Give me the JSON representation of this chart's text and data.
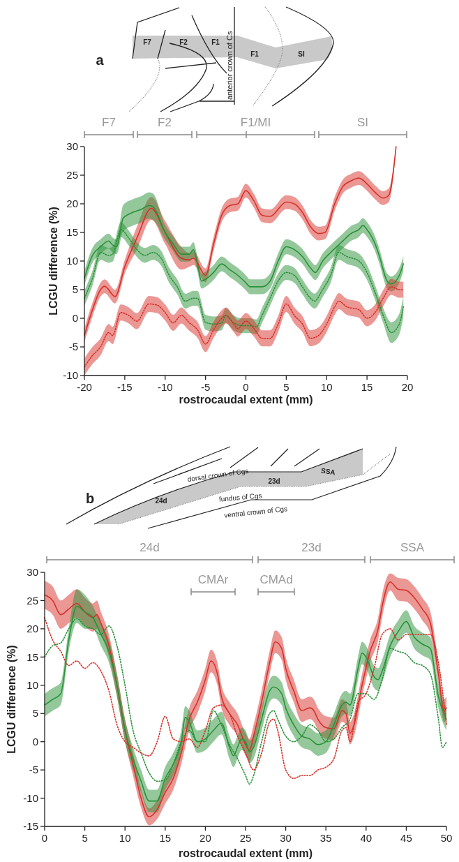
{
  "chart_data": [
    {
      "type": "line",
      "xlabel": "rostrocaudal extent (mm)",
      "ylabel": "LCGU difference (%)",
      "annotations": [
        "a",
        "F7",
        "F2",
        "F1",
        "anterior crown of Cs",
        "F1",
        "SI",
        "F7",
        "F2",
        "F1/MI",
        "SI"
      ],
      "xlim": [
        -20,
        20
      ],
      "xticks": [
        -20,
        -15,
        -10,
        -5,
        0,
        5,
        10,
        15,
        20
      ],
      "ylim": [
        -10,
        30
      ],
      "yticks": [
        -10,
        -5,
        0,
        5,
        10,
        15,
        20,
        25,
        30
      ],
      "series": [
        {
          "color": "#d7302a",
          "line_style": "solid",
          "x": [
            -20,
            -19,
            -18,
            -17.5,
            -16.2,
            -15,
            -13.5,
            -11.7,
            -10,
            -8,
            -7,
            -6.5,
            -5,
            -4,
            -3,
            -2,
            -1,
            0,
            1,
            2,
            3,
            5,
            6,
            7,
            8,
            9,
            9.8,
            11,
            12,
            13,
            14,
            15,
            16,
            17,
            17.7,
            18.6
          ],
          "values": [
            -3,
            1.5,
            5,
            5.6,
            3.8,
            9,
            14,
            19.2,
            15,
            10.5,
            10.2,
            10.5,
            7.5,
            13,
            18,
            19.7,
            20,
            22.3,
            20.5,
            18,
            17.8,
            20.3,
            20,
            18.5,
            16,
            14.8,
            15,
            20,
            23,
            24,
            24.5,
            23.5,
            22,
            21,
            21.5,
            30
          ],
          "lower": [
            -4.2,
            0.3,
            3.8,
            4.4,
            2.6,
            7.8,
            12,
            17.2,
            13,
            8.5,
            9,
            9.3,
            6.3,
            11.8,
            16.8,
            18.5,
            18.8,
            21.1,
            19.3,
            16.8,
            16.6,
            19.1,
            18.8,
            17.3,
            14.8,
            13.6,
            13.8,
            18.8,
            21.8,
            22.8,
            23.3,
            22.3,
            20.8,
            19.8,
            20.3,
            29.5
          ],
          "upper": [
            -1.8,
            2.7,
            6.2,
            6.8,
            5,
            10.2,
            16,
            21.2,
            17,
            12.5,
            11.4,
            11.7,
            8.7,
            14.2,
            19.2,
            20.9,
            21.2,
            23.5,
            21.7,
            19.2,
            19,
            21.5,
            21.2,
            19.7,
            17.2,
            16,
            16.2,
            21.2,
            24.2,
            25.2,
            25.7,
            24.7,
            23.2,
            22.2,
            22.7,
            30
          ]
        },
        {
          "color": "#2a9138",
          "line_style": "solid",
          "x": [
            -20,
            -19,
            -18,
            -17,
            -16.5,
            -16,
            -15.2,
            -14,
            -13,
            -12,
            -11.5,
            -10,
            -9,
            -8,
            -7,
            -6.5,
            -6,
            -5.5,
            -5,
            -4,
            -3,
            -2,
            -1,
            0,
            0.5,
            2,
            3,
            4,
            5,
            6,
            7,
            8,
            8.6,
            9.5,
            10.5,
            12,
            13,
            14,
            14.5,
            15,
            16,
            16.5,
            17.5,
            18,
            19,
            19.5
          ],
          "values": [
            7,
            11,
            12.5,
            13.5,
            12.8,
            12.5,
            17.5,
            18.5,
            19,
            19.7,
            19.5,
            15,
            13,
            11.2,
            11.2,
            12,
            9.5,
            6.5,
            6.8,
            8,
            9.5,
            8.5,
            7.5,
            6.2,
            5.5,
            5.5,
            6.5,
            10,
            12.5,
            12,
            10.8,
            8.8,
            8,
            10,
            11.5,
            13.5,
            14.8,
            15.5,
            16.2,
            15.5,
            13,
            11,
            6.5,
            6,
            7.5,
            9.5
          ],
          "lower": [
            5.7,
            9.7,
            11.2,
            12.2,
            11.5,
            11.2,
            15.2,
            16.2,
            16.7,
            17.4,
            17.2,
            13.7,
            11.7,
            9.9,
            9.9,
            10.7,
            8.2,
            5.2,
            5.5,
            6.7,
            8.2,
            7.2,
            6.2,
            4.9,
            4.2,
            4.2,
            5.2,
            8.7,
            11.2,
            10.7,
            9.5,
            7.5,
            6.7,
            8.7,
            10.2,
            12.2,
            13.5,
            14.2,
            14.9,
            14.2,
            11.7,
            9.7,
            5.2,
            4.7,
            6.2,
            8.2
          ],
          "upper": [
            8.3,
            12.3,
            13.8,
            14.8,
            14.1,
            13.8,
            19.8,
            20.8,
            21.3,
            22,
            21.8,
            16.3,
            14.3,
            12.5,
            12.5,
            13.3,
            10.8,
            7.8,
            8.1,
            9.3,
            10.8,
            9.8,
            8.8,
            7.5,
            6.8,
            6.8,
            7.8,
            11.3,
            13.8,
            13.3,
            12.1,
            10.1,
            9.3,
            11.3,
            12.8,
            14.8,
            16.1,
            16.8,
            17.5,
            16.8,
            14.3,
            12.3,
            7.8,
            7.3,
            8.8,
            10.8
          ]
        },
        {
          "color": "#2a9138",
          "line_style": "dotted",
          "x": [
            -20,
            -19,
            -18,
            -17,
            -16.5,
            -15.5,
            -14.5,
            -13.5,
            -12.5,
            -11.5,
            -10.5,
            -9.5,
            -8.5,
            -7.5,
            -6.5,
            -6,
            -5,
            -4,
            -3,
            -2.5,
            -1.5,
            -0.5,
            0.5,
            1.3,
            2,
            3,
            4,
            5,
            6,
            7,
            8,
            8.5,
            9.5,
            10.5,
            11.5,
            12.5,
            14,
            15,
            16,
            17,
            18,
            19,
            19.5
          ],
          "values": [
            3.5,
            7,
            11.5,
            11,
            11.2,
            15.5,
            14,
            12,
            11,
            11.5,
            10.5,
            7.5,
            5.5,
            3,
            3.5,
            3.5,
            -0.7,
            -1,
            -0.8,
            0.5,
            -0.8,
            -1.3,
            -1.3,
            -1.5,
            0.5,
            3.5,
            6.5,
            8,
            7.5,
            5.5,
            3.5,
            3,
            5,
            7.5,
            11.5,
            10.8,
            10,
            8,
            4.5,
            0.5,
            -2.5,
            -1,
            2
          ],
          "lower": [
            2.2,
            5.7,
            10.2,
            9.7,
            9.9,
            14.2,
            12.7,
            10.7,
            9.7,
            10.2,
            9.2,
            6.2,
            4.2,
            1.7,
            2.2,
            2.2,
            -2,
            -2.3,
            -2.1,
            -0.8,
            -2.1,
            -2.6,
            -2.6,
            -2.8,
            -0.8,
            2.2,
            5.2,
            6.7,
            6.2,
            4.2,
            2.2,
            1.7,
            3.7,
            6.2,
            10.2,
            9.5,
            8.7,
            6.7,
            3.2,
            -0.8,
            -4.3,
            -2.8,
            0.2
          ],
          "upper": [
            4.8,
            8.3,
            12.8,
            12.3,
            12.5,
            16.8,
            15.3,
            13.3,
            12.3,
            12.8,
            11.8,
            8.8,
            6.8,
            4.3,
            4.8,
            4.8,
            0.6,
            0.3,
            0.5,
            1.8,
            0.5,
            0,
            0,
            -0.2,
            1.8,
            4.8,
            7.8,
            9.3,
            8.8,
            6.8,
            4.8,
            4.3,
            6.3,
            8.8,
            12.8,
            12.1,
            11.3,
            9.3,
            5.8,
            1.8,
            -0.7,
            0.8,
            3.8
          ]
        },
        {
          "color": "#d7302a",
          "line_style": "dotted",
          "x": [
            -20,
            -19,
            -18,
            -17,
            -16.5,
            -15.5,
            -14.5,
            -13.5,
            -12,
            -11,
            -10,
            -9,
            -8,
            -7,
            -6,
            -5,
            -4,
            -3,
            -2.5,
            -1.5,
            -1,
            0,
            1,
            2,
            3,
            4,
            5,
            6,
            7,
            8,
            9,
            10,
            11,
            11.5,
            12.5,
            14,
            15,
            16,
            17,
            18,
            19,
            19.5
          ],
          "values": [
            -8.5,
            -6.5,
            -5,
            -2.5,
            -3,
            1,
            0.5,
            -0.5,
            2.5,
            2.3,
            1,
            -0.8,
            0.5,
            -0.8,
            -2,
            -4.5,
            -2,
            0,
            0.5,
            -1,
            -1.8,
            -0.5,
            -1.8,
            -3.5,
            -3.5,
            -1,
            2.5,
            0.5,
            -1,
            -3.5,
            -3,
            -1,
            2,
            3,
            2,
            1.5,
            0,
            1,
            3.5,
            5.5,
            5,
            5
          ],
          "lower": [
            -10,
            -8,
            -6.5,
            -4,
            -4.5,
            -0.4,
            -0.9,
            -1.9,
            1.1,
            0.9,
            -0.4,
            -2.2,
            -0.9,
            -2.2,
            -3.4,
            -5.9,
            -3.4,
            -1.4,
            -0.9,
            -2.4,
            -3.2,
            -1.9,
            -3.2,
            -4.9,
            -4.9,
            -2.4,
            1.1,
            -0.9,
            -2.4,
            -4.9,
            -4.4,
            -2.4,
            0.6,
            1.6,
            0.6,
            0.1,
            -1.4,
            -0.4,
            2.1,
            4.1,
            3.6,
            3.6
          ],
          "upper": [
            -7,
            -5,
            -3.5,
            -1,
            -1.5,
            2.4,
            1.9,
            0.9,
            3.9,
            3.7,
            2.4,
            0.6,
            1.9,
            0.6,
            -0.6,
            -3.1,
            -0.6,
            1.4,
            1.9,
            0.4,
            -0.4,
            0.9,
            -0.4,
            -2.1,
            -2.1,
            0.4,
            3.9,
            1.9,
            0.4,
            -2.1,
            -1.6,
            0.4,
            3.4,
            4.4,
            3.4,
            2.9,
            1.4,
            2.4,
            4.9,
            6.9,
            6.4,
            6.4
          ]
        }
      ]
    },
    {
      "type": "line",
      "xlabel": "rostrocaudal extent (mm)",
      "ylabel": "LCGU difference (%)",
      "annotations": [
        "b",
        "dorsal crown of Cgs",
        "24d",
        "23d",
        "SSA",
        "fundus of Cgs",
        "ventral crown of Cgs",
        "24d",
        "23d",
        "SSA",
        "CMAr",
        "CMAd"
      ],
      "xlim": [
        0,
        50
      ],
      "xticks": [
        0,
        5,
        10,
        15,
        20,
        25,
        30,
        35,
        40,
        45,
        50
      ],
      "ylim": [
        -15,
        30
      ],
      "yticks": [
        -15,
        -10,
        -5,
        0,
        5,
        10,
        15,
        20,
        25,
        30
      ],
      "series": [
        {
          "color": "#d7302a",
          "line_style": "solid",
          "x": [
            0,
            1,
            2,
            3,
            4,
            5,
            6,
            6.5,
            7,
            8,
            9,
            10,
            11,
            12,
            13,
            14,
            15,
            16,
            17,
            18,
            19,
            20,
            20.7,
            21.5,
            22,
            23,
            24,
            25,
            25.5,
            26,
            27,
            28,
            28.7,
            29.5,
            30,
            31,
            32,
            33,
            33.5,
            34,
            35,
            36,
            37,
            37.5,
            38,
            38.5,
            39.5,
            40.5,
            41.5,
            42,
            43,
            44,
            45,
            46,
            47,
            48,
            49,
            49.7,
            50
          ],
          "values": [
            26,
            25,
            22.5,
            23.5,
            24.5,
            23,
            22,
            22.5,
            21,
            17,
            10,
            2,
            -4,
            -10,
            -13.3,
            -12,
            -9,
            -6.5,
            -2,
            4,
            7,
            11,
            14.3,
            12,
            8,
            5,
            3,
            -0.5,
            -1.5,
            1,
            7,
            14,
            17.7,
            16.5,
            13,
            9,
            5.5,
            6,
            5.5,
            4,
            2.5,
            2.3,
            5.5,
            5,
            1.5,
            3,
            10,
            16,
            20,
            24,
            28.3,
            27,
            26.8,
            25.5,
            23.5,
            21,
            12,
            5.5,
            6
          ],
          "lower": [
            23.5,
            22.5,
            20,
            21,
            22,
            20.5,
            19.5,
            20,
            19,
            15,
            8,
            0,
            -6,
            -11.7,
            -14.8,
            -13.7,
            -11,
            -8.5,
            -4,
            2,
            5,
            9,
            12.3,
            10,
            6,
            3,
            1,
            -2.5,
            -3.5,
            -1,
            5,
            12,
            15.7,
            14.5,
            11,
            7,
            3.5,
            4,
            3.5,
            2,
            0.5,
            0.3,
            3.5,
            3,
            -0.5,
            1,
            8,
            14,
            18,
            22,
            26.8,
            25,
            24.8,
            23.5,
            21.5,
            19,
            10,
            3.5,
            4
          ],
          "upper": [
            28.5,
            27.5,
            25,
            26,
            27,
            25.5,
            24.5,
            25,
            23,
            19,
            12,
            4,
            -2,
            -8.3,
            -11.8,
            -10.3,
            -7,
            -4.5,
            0,
            6,
            9,
            13,
            16.3,
            14,
            10,
            7,
            5,
            1.5,
            0.5,
            3,
            9,
            16,
            19.7,
            18.5,
            15,
            11,
            7.5,
            8,
            7.5,
            6,
            4.5,
            4.3,
            7.5,
            7,
            3.5,
            5,
            12,
            18,
            22,
            26,
            29.8,
            29,
            28.8,
            27.5,
            25.5,
            23,
            14,
            7.5,
            8
          ]
        },
        {
          "color": "#2a9138",
          "line_style": "solid",
          "x": [
            0,
            1,
            2,
            3,
            4,
            5,
            6,
            7,
            8,
            9,
            10,
            11,
            12,
            13,
            14,
            15,
            16,
            17,
            17.5,
            18,
            19,
            20,
            21,
            22,
            23,
            23.5,
            24,
            24.5,
            25,
            25.5,
            26,
            27,
            28,
            28.5,
            29.5,
            30,
            31,
            32,
            33,
            34,
            35,
            36,
            37,
            37.5,
            38,
            39,
            39.5,
            40,
            41,
            41.5,
            42,
            43,
            44,
            45,
            46,
            47,
            48,
            49,
            50
          ],
          "values": [
            6.5,
            7.5,
            8.5,
            18,
            24,
            23,
            22,
            19,
            16,
            10,
            2,
            -3,
            -7,
            -10.5,
            -10.5,
            -6.5,
            -4,
            0,
            4.3,
            3.5,
            0,
            0.5,
            2,
            3.3,
            -1,
            -2.5,
            -1,
            0.5,
            0,
            -1.8,
            -1,
            4,
            9,
            9.7,
            8.5,
            6,
            3,
            1,
            0.5,
            -0.5,
            0,
            3,
            6.5,
            7,
            6.5,
            13,
            15.7,
            15,
            11.5,
            11,
            12.5,
            17,
            19.5,
            21.3,
            18.5,
            17.3,
            16.5,
            8,
            4
          ],
          "lower": [
            4.5,
            5.5,
            6.5,
            16,
            21,
            20,
            20,
            17,
            14,
            8,
            0,
            -5,
            -9,
            -12.5,
            -12.5,
            -8.5,
            -6,
            -2,
            2.3,
            1.5,
            -2,
            -1.5,
            0,
            1.3,
            -3,
            -4.5,
            -3,
            -1.5,
            -2,
            -3.8,
            -3,
            2,
            7,
            7.7,
            6.5,
            4,
            1,
            -1,
            -1.5,
            -2.5,
            -2,
            1,
            4.5,
            5,
            4.5,
            11,
            13.7,
            13,
            9.5,
            9,
            10.5,
            15,
            17.5,
            19.3,
            16.5,
            15.3,
            14.5,
            6,
            2
          ],
          "upper": [
            8.5,
            9.5,
            10.5,
            20,
            27,
            26,
            24,
            21,
            18,
            12,
            4,
            -1,
            -5,
            -8.5,
            -8.5,
            -4.5,
            -2,
            2,
            6.3,
            5.5,
            2,
            2.5,
            4,
            5.3,
            1,
            -0.5,
            1,
            2.5,
            2,
            0.2,
            1,
            6,
            11,
            11.7,
            10.5,
            8,
            5,
            3,
            2.5,
            1.5,
            2,
            5,
            8.5,
            9,
            8.5,
            15,
            17.7,
            17,
            13.5,
            13,
            14.5,
            19,
            21.5,
            23.3,
            20.5,
            19.3,
            18.5,
            10,
            6
          ]
        },
        {
          "color": "#2a9138",
          "line_style": "dotted",
          "x": [
            0,
            1,
            2,
            3,
            4,
            5,
            6,
            7,
            8,
            9,
            10,
            11,
            12,
            13,
            14,
            15,
            16,
            17,
            18,
            19,
            20,
            21,
            22,
            23,
            24,
            25,
            25.5,
            26,
            27,
            28,
            28.5,
            29,
            30,
            31,
            32,
            33,
            34,
            35,
            36,
            37,
            38,
            39,
            40,
            41,
            42,
            43,
            44,
            45,
            46,
            47,
            48,
            49,
            49.5,
            50
          ],
          "values": [
            15,
            17,
            17.5,
            20,
            21.8,
            20.5,
            20,
            19,
            20.5,
            17,
            10,
            2,
            -2,
            -5.5,
            -7,
            -6.8,
            -4,
            0,
            2,
            0,
            0,
            5.5,
            3,
            -0.5,
            -3,
            -6,
            -7.5,
            -6,
            0,
            5,
            5.5,
            4,
            1,
            0,
            1,
            3,
            2,
            0,
            0.5,
            2.5,
            4,
            8.5,
            8.5,
            7.5,
            11,
            16.5,
            16,
            15.5,
            14,
            13.5,
            12,
            4,
            -1,
            0
          ]
        },
        {
          "color": "#d7302a",
          "line_style": "dotted",
          "x": [
            0,
            1,
            2,
            3,
            4,
            5,
            6,
            7,
            8,
            9,
            10,
            11,
            12,
            13,
            14,
            15,
            16,
            17,
            18,
            19,
            20,
            21,
            22,
            23,
            24,
            25,
            26,
            27,
            28,
            28.5,
            29,
            30,
            31,
            32,
            33,
            34,
            35,
            36,
            37,
            37.5,
            38,
            39,
            40,
            41,
            42,
            43,
            44,
            45,
            46,
            47,
            48,
            49,
            50
          ],
          "values": [
            22,
            18,
            16,
            13.5,
            14.3,
            13,
            14,
            12.5,
            9,
            3,
            0,
            -1,
            -2,
            -2.5,
            0,
            4.5,
            0.5,
            0,
            0.5,
            -1,
            2,
            6,
            6.5,
            5,
            1,
            -2,
            -5,
            -2,
            3.5,
            4,
            2,
            -5,
            -6.5,
            -6,
            -6,
            -5,
            -4.5,
            -3,
            2,
            2.5,
            0,
            7,
            8.5,
            13,
            19,
            20,
            18,
            19,
            19,
            19,
            19,
            14,
            3
          ]
        }
      ]
    }
  ]
}
